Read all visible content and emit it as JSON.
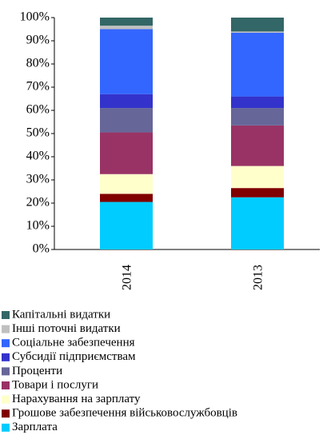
{
  "chart_data": {
    "type": "bar",
    "stacked": true,
    "categories": [
      "2014",
      "2013"
    ],
    "series": [
      {
        "name": "Зарплата",
        "color": "#00ccff",
        "values": [
          20.5,
          22.5
        ]
      },
      {
        "name": "Грошове забезпечення військовослужбовців",
        "color": "#800000",
        "values": [
          3.5,
          4
        ]
      },
      {
        "name": "Нарахування на зарплату",
        "color": "#ffffcc",
        "values": [
          8.5,
          9.5
        ]
      },
      {
        "name": "Товари і послуги",
        "color": "#993366",
        "values": [
          18,
          17.5
        ]
      },
      {
        "name": "Проценти",
        "color": "#666699",
        "values": [
          10.5,
          7.5
        ]
      },
      {
        "name": "Субсидії підприємствам",
        "color": "#3333cc",
        "values": [
          6,
          5
        ]
      },
      {
        "name": "Соціальне забезпечення",
        "color": "#3366ff",
        "values": [
          28,
          27.5
        ]
      },
      {
        "name": "Інші поточні видатки",
        "color": "#c0c0c0",
        "values": [
          1.5,
          0.5
        ]
      },
      {
        "name": "Капітальні видатки",
        "color": "#336666",
        "values": [
          3.5,
          6
        ]
      }
    ],
    "ylim": [
      0,
      100
    ],
    "yticks": [
      {
        "value": 0,
        "label": "0%"
      },
      {
        "value": 10,
        "label": "10%"
      },
      {
        "value": 20,
        "label": "20%"
      },
      {
        "value": 30,
        "label": "30%"
      },
      {
        "value": 40,
        "label": "40%"
      },
      {
        "value": 50,
        "label": "50%"
      },
      {
        "value": 60,
        "label": "60%"
      },
      {
        "value": 70,
        "label": "70%"
      },
      {
        "value": 80,
        "label": "80%"
      },
      {
        "value": 90,
        "label": "90%"
      },
      {
        "value": 100,
        "label": "100%"
      }
    ],
    "legend": "bottom"
  }
}
